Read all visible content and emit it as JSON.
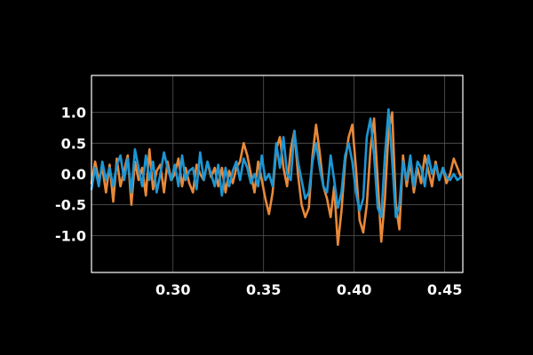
{
  "chart_data": {
    "type": "line",
    "title": "",
    "xlabel": "",
    "ylabel": "",
    "xlim": [
      0.255,
      0.46
    ],
    "ylim": [
      -1.6,
      1.6
    ],
    "grid": true,
    "background": "#000000",
    "axis_color": "#ffffff",
    "grid_color": "#555555",
    "x_ticks": [
      0.3,
      0.35,
      0.4,
      0.45
    ],
    "x_tick_labels": [
      "0.30",
      "0.35",
      "0.40",
      "0.45"
    ],
    "y_ticks": [
      1.0,
      0.5,
      0.0,
      -0.5,
      -1.0
    ],
    "y_tick_labels": [
      "1.0",
      "0.5",
      "0.0",
      "-0.5",
      "-1.0"
    ],
    "series": [
      {
        "color": "#e8893a",
        "x": [
          0.255,
          0.257,
          0.259,
          0.261,
          0.263,
          0.265,
          0.267,
          0.269,
          0.271,
          0.273,
          0.275,
          0.277,
          0.279,
          0.281,
          0.283,
          0.285,
          0.287,
          0.289,
          0.291,
          0.293,
          0.295,
          0.297,
          0.299,
          0.301,
          0.303,
          0.305,
          0.307,
          0.309,
          0.311,
          0.313,
          0.315,
          0.317,
          0.319,
          0.321,
          0.323,
          0.325,
          0.327,
          0.329,
          0.331,
          0.333,
          0.335,
          0.337,
          0.339,
          0.341,
          0.343,
          0.345,
          0.347,
          0.349,
          0.351,
          0.353,
          0.355,
          0.357,
          0.359,
          0.361,
          0.363,
          0.365,
          0.367,
          0.369,
          0.371,
          0.373,
          0.375,
          0.377,
          0.379,
          0.381,
          0.383,
          0.385,
          0.387,
          0.389,
          0.391,
          0.393,
          0.395,
          0.397,
          0.399,
          0.401,
          0.403,
          0.405,
          0.407,
          0.409,
          0.411,
          0.413,
          0.415,
          0.417,
          0.419,
          0.421,
          0.423,
          0.425,
          0.427,
          0.429,
          0.431,
          0.433,
          0.435,
          0.437,
          0.439,
          0.441,
          0.443,
          0.445,
          0.447,
          0.449,
          0.451,
          0.453,
          0.455,
          0.457,
          0.459
        ],
        "y": [
          -0.15,
          0.2,
          -0.1,
          0.1,
          -0.3,
          0.15,
          -0.45,
          0.25,
          -0.2,
          0.05,
          0.3,
          -0.5,
          0.2,
          -0.1,
          0.1,
          -0.35,
          0.4,
          -0.25,
          0.05,
          0.15,
          -0.3,
          0.2,
          -0.1,
          0.0,
          0.25,
          -0.2,
          0.1,
          -0.15,
          -0.3,
          0.15,
          0.0,
          -0.1,
          0.2,
          -0.05,
          0.1,
          -0.2,
          0.1,
          -0.3,
          0.05,
          -0.15,
          0.1,
          0.2,
          0.5,
          0.3,
          0.0,
          -0.3,
          0.2,
          -0.1,
          -0.4,
          -0.65,
          -0.3,
          0.4,
          0.6,
          0.1,
          -0.2,
          0.4,
          0.7,
          0.0,
          -0.5,
          -0.7,
          -0.55,
          0.3,
          0.8,
          0.35,
          -0.2,
          -0.4,
          -0.7,
          -0.2,
          -1.15,
          -0.6,
          0.2,
          0.6,
          0.8,
          0.1,
          -0.75,
          -0.95,
          -0.5,
          0.4,
          0.9,
          -0.1,
          -1.1,
          -0.4,
          0.7,
          1.0,
          -0.5,
          -0.9,
          0.3,
          -0.2,
          0.2,
          -0.3,
          0.1,
          -0.15,
          0.3,
          0.05,
          -0.2,
          0.2,
          -0.1,
          0.1,
          -0.15,
          0.0,
          0.25,
          0.1,
          -0.05
        ]
      },
      {
        "color": "#1d96d4",
        "x": [
          0.255,
          0.257,
          0.259,
          0.261,
          0.263,
          0.265,
          0.267,
          0.269,
          0.271,
          0.273,
          0.275,
          0.277,
          0.279,
          0.281,
          0.283,
          0.285,
          0.287,
          0.289,
          0.291,
          0.293,
          0.295,
          0.297,
          0.299,
          0.301,
          0.303,
          0.305,
          0.307,
          0.309,
          0.311,
          0.313,
          0.315,
          0.317,
          0.319,
          0.321,
          0.323,
          0.325,
          0.327,
          0.329,
          0.331,
          0.333,
          0.335,
          0.337,
          0.339,
          0.341,
          0.343,
          0.345,
          0.347,
          0.349,
          0.351,
          0.353,
          0.355,
          0.357,
          0.359,
          0.361,
          0.363,
          0.365,
          0.367,
          0.369,
          0.371,
          0.373,
          0.375,
          0.377,
          0.379,
          0.381,
          0.383,
          0.385,
          0.387,
          0.389,
          0.391,
          0.393,
          0.395,
          0.397,
          0.399,
          0.401,
          0.403,
          0.405,
          0.407,
          0.409,
          0.411,
          0.413,
          0.415,
          0.417,
          0.419,
          0.421,
          0.423,
          0.425,
          0.427,
          0.429,
          0.431,
          0.433,
          0.435,
          0.437,
          0.439,
          0.441,
          0.443,
          0.445,
          0.447,
          0.449,
          0.451,
          0.453,
          0.455,
          0.457,
          0.459
        ],
        "y": [
          -0.25,
          0.1,
          -0.2,
          0.2,
          -0.1,
          0.1,
          -0.2,
          0.15,
          0.3,
          -0.1,
          0.25,
          -0.3,
          0.4,
          0.1,
          -0.2,
          0.3,
          -0.1,
          0.2,
          -0.3,
          0.0,
          0.35,
          0.1,
          -0.1,
          0.15,
          -0.2,
          0.3,
          -0.1,
          0.05,
          0.1,
          -0.25,
          0.35,
          -0.1,
          0.2,
          0.0,
          -0.2,
          0.15,
          -0.35,
          0.1,
          -0.2,
          0.05,
          0.2,
          -0.1,
          0.25,
          0.1,
          -0.15,
          0.0,
          -0.2,
          0.3,
          -0.1,
          0.0,
          -0.2,
          0.5,
          0.1,
          0.6,
          0.0,
          -0.1,
          0.7,
          0.2,
          -0.1,
          -0.4,
          -0.3,
          0.2,
          0.5,
          0.1,
          -0.2,
          -0.3,
          0.3,
          -0.1,
          -0.55,
          -0.3,
          0.3,
          0.5,
          0.2,
          -0.3,
          -0.6,
          -0.4,
          0.6,
          0.9,
          0.3,
          -0.55,
          -0.7,
          0.3,
          1.05,
          0.2,
          -0.7,
          -0.5,
          0.2,
          -0.1,
          0.3,
          -0.2,
          0.2,
          0.1,
          -0.2,
          0.3,
          0.0,
          0.15,
          -0.1,
          0.1,
          -0.05,
          -0.1,
          0.0,
          -0.1,
          -0.05
        ]
      }
    ]
  }
}
